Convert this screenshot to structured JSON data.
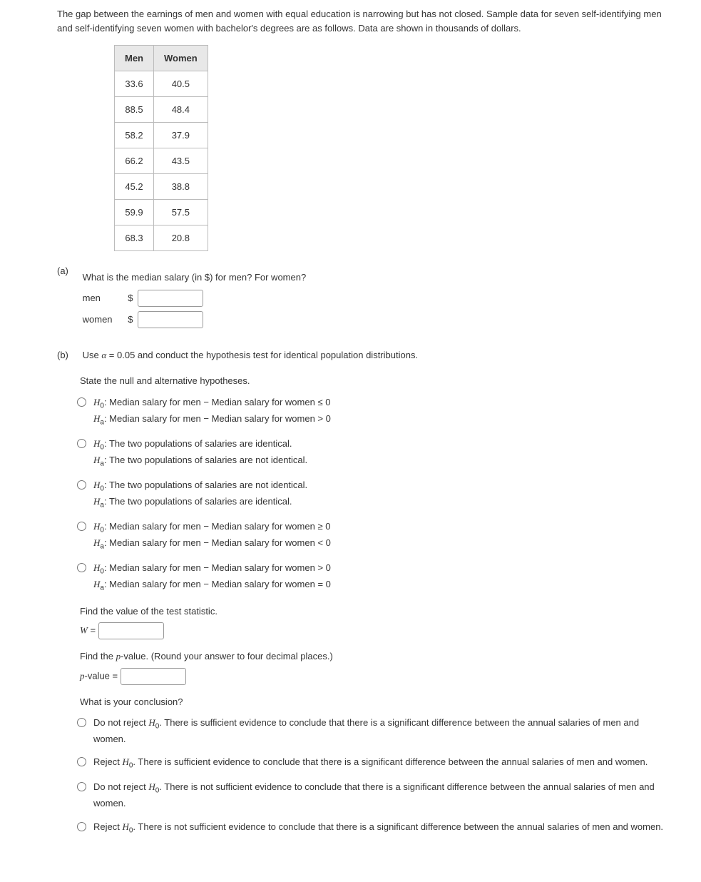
{
  "intro": "The gap between the earnings of men and women with equal education is narrowing but has not closed. Sample data for seven self-identifying men and self-identifying seven women with bachelor's degrees are as follows. Data are shown in thousands of dollars.",
  "table": {
    "headers": [
      "Men",
      "Women"
    ],
    "rows": [
      [
        "33.6",
        "40.5"
      ],
      [
        "88.5",
        "48.4"
      ],
      [
        "58.2",
        "37.9"
      ],
      [
        "66.2",
        "43.5"
      ],
      [
        "45.2",
        "38.8"
      ],
      [
        "59.9",
        "57.5"
      ],
      [
        "68.3",
        "20.8"
      ]
    ]
  },
  "partA": {
    "label": "(a)",
    "question": "What is the median salary (in $) for men? For women?",
    "men_label": "men",
    "women_label": "women",
    "dollar": "$"
  },
  "partB": {
    "label": "(b)",
    "intro": "Use α = 0.05 and conduct the hypothesis test for identical population distributions.",
    "state": "State the null and alternative hypotheses.",
    "hypotheses": [
      {
        "h0": "Median salary for men − Median salary for women ≤ 0",
        "ha": "Median salary for men − Median salary for women > 0"
      },
      {
        "h0": "The two populations of salaries are identical.",
        "ha": "The two populations of salaries are not identical."
      },
      {
        "h0": "The two populations of salaries are not identical.",
        "ha": "The two populations of salaries are identical."
      },
      {
        "h0": "Median salary for men − Median salary for women ≥ 0",
        "ha": "Median salary for men − Median salary for women < 0"
      },
      {
        "h0": "Median salary for men − Median salary for women > 0",
        "ha": "Median salary for men − Median salary for women = 0"
      }
    ],
    "teststat_label": "Find the value of the test statistic.",
    "W": "W",
    "equals": " = ",
    "pval_label": "Find the p-value. (Round your answer to four decimal places.)",
    "pval_prefix": "p-value = ",
    "concl_label": "What is your conclusion?",
    "conclusions": [
      "Do not reject H₀. There is sufficient evidence to conclude that there is a significant difference between the annual salaries of men and women.",
      "Reject H₀. There is sufficient evidence to conclude that there is a significant difference between the annual salaries of men and women.",
      "Do not reject H₀. There is not sufficient evidence to conclude that there is a significant difference between the annual salaries of men and women.",
      "Reject H₀. There is not sufficient evidence to conclude that there is a significant difference between the annual salaries of men and women."
    ]
  },
  "H0_prefix": "H",
  "H0_sub": "0",
  "Ha_prefix": "H",
  "Ha_sub": "a",
  "colon": ": "
}
